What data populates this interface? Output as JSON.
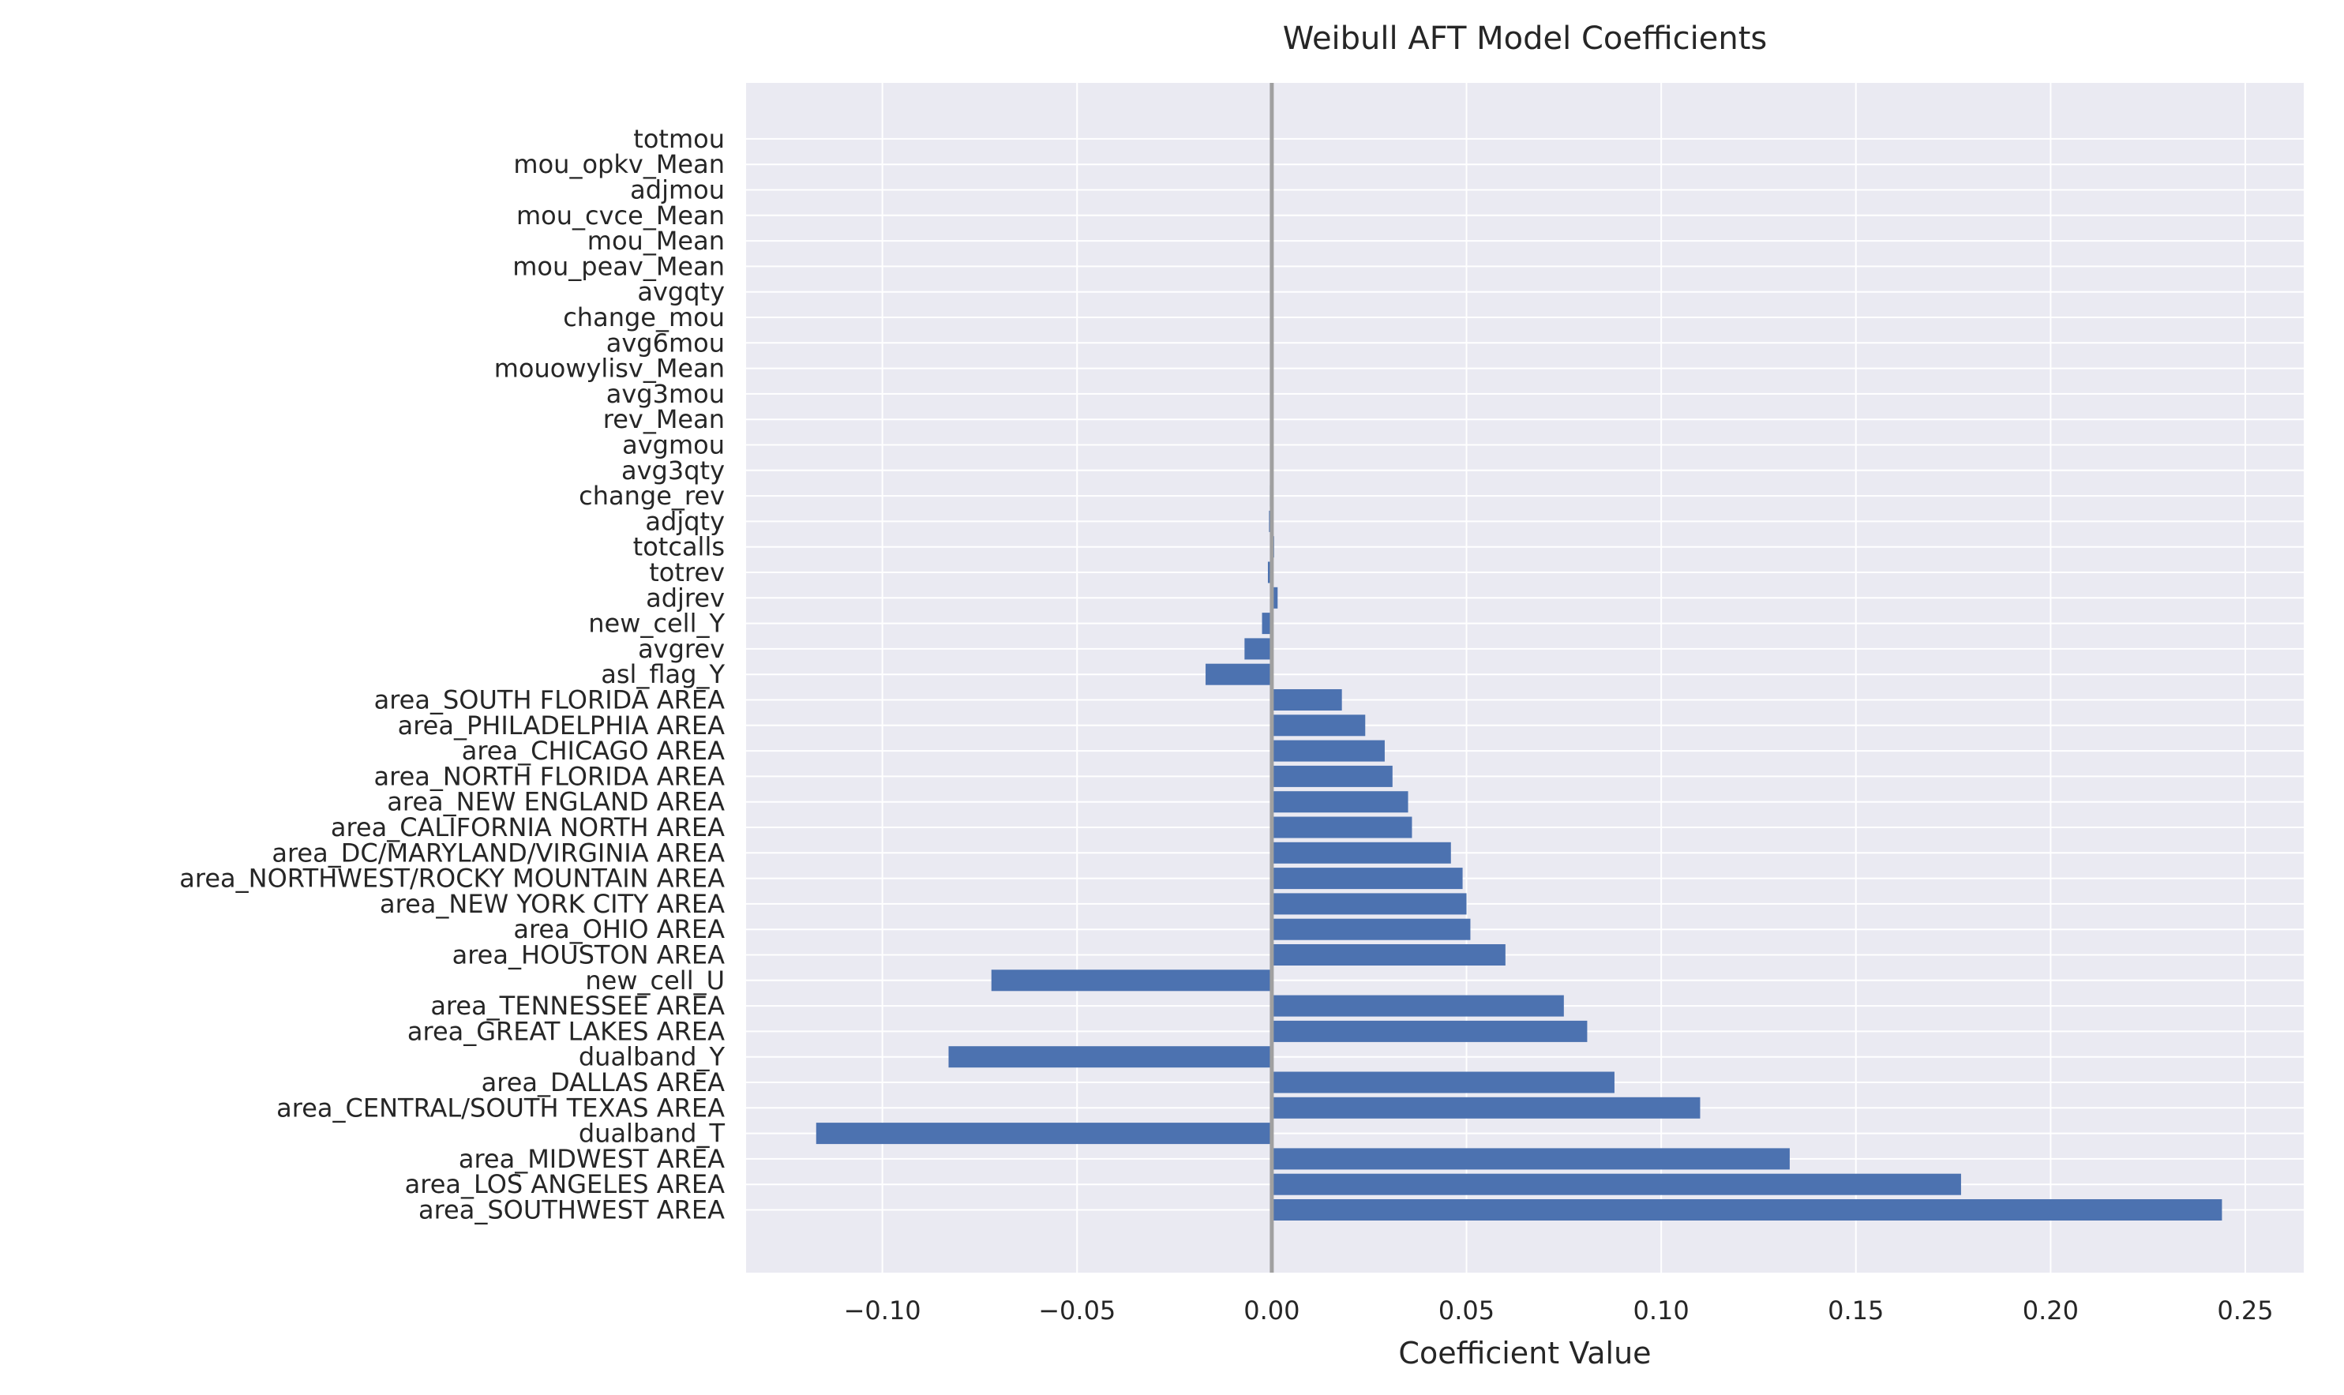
{
  "chart_data": {
    "type": "bar",
    "orientation": "horizontal",
    "title": "Weibull AFT Model Coefficients",
    "xlabel": "Coefficient Value",
    "ylabel": "",
    "xlim": [
      -0.135,
      0.265
    ],
    "xticks": [
      -0.1,
      -0.05,
      0.0,
      0.05,
      0.1,
      0.15,
      0.2,
      0.25
    ],
    "xtick_labels": [
      "−0.10",
      "−0.05",
      "0.00",
      "0.05",
      "0.10",
      "0.15",
      "0.20",
      "0.25"
    ],
    "grid": true,
    "zero_line": true,
    "categories": [
      "area_SOUTHWEST AREA",
      "area_LOS ANGELES AREA",
      "area_MIDWEST AREA",
      "dualband_T",
      "area_CENTRAL/SOUTH TEXAS AREA",
      "area_DALLAS AREA",
      "dualband_Y",
      "area_GREAT LAKES AREA",
      "area_TENNESSEE AREA",
      "new_cell_U",
      "area_HOUSTON AREA",
      "area_OHIO AREA",
      "area_NEW YORK CITY AREA",
      "area_NORTHWEST/ROCKY MOUNTAIN AREA",
      "area_DC/MARYLAND/VIRGINIA AREA",
      "area_CALIFORNIA NORTH AREA",
      "area_NEW ENGLAND AREA",
      "area_NORTH FLORIDA AREA",
      "area_CHICAGO AREA",
      "area_PHILADELPHIA AREA",
      "area_SOUTH FLORIDA AREA",
      "asl_flag_Y",
      "avgrev",
      "new_cell_Y",
      "adjrev",
      "totrev",
      "totcalls",
      "adjqty",
      "change_rev",
      "avg3qty",
      "avgmou",
      "rev_Mean",
      "avg3mou",
      "mouowylisv_Mean",
      "avg6mou",
      "change_mou",
      "avgqty",
      "mou_peav_Mean",
      "mou_Mean",
      "mou_cvce_Mean",
      "adjmou",
      "mou_opkv_Mean",
      "totmou"
    ],
    "values": [
      0.244,
      0.177,
      0.133,
      -0.117,
      0.11,
      0.088,
      -0.083,
      0.081,
      0.075,
      -0.072,
      0.06,
      0.051,
      0.05,
      0.049,
      0.046,
      0.036,
      0.035,
      0.031,
      0.029,
      0.024,
      0.018,
      -0.017,
      -0.007,
      -0.0025,
      0.0015,
      -0.001,
      0.0006,
      -0.0007,
      -0.0005,
      -0.0004,
      -0.0004,
      -0.0003,
      -0.0002,
      -0.0002,
      -0.0002,
      -0.0001,
      -0.0001,
      -0.0003,
      -0.0002,
      -0.0001,
      -0.0001,
      -0.0001,
      -0.0001
    ],
    "bar_color": "#4c72b0",
    "background_color": "#eaeaf2",
    "grid_color": "#ffffff",
    "zero_line_color": "#a0a0a0"
  }
}
